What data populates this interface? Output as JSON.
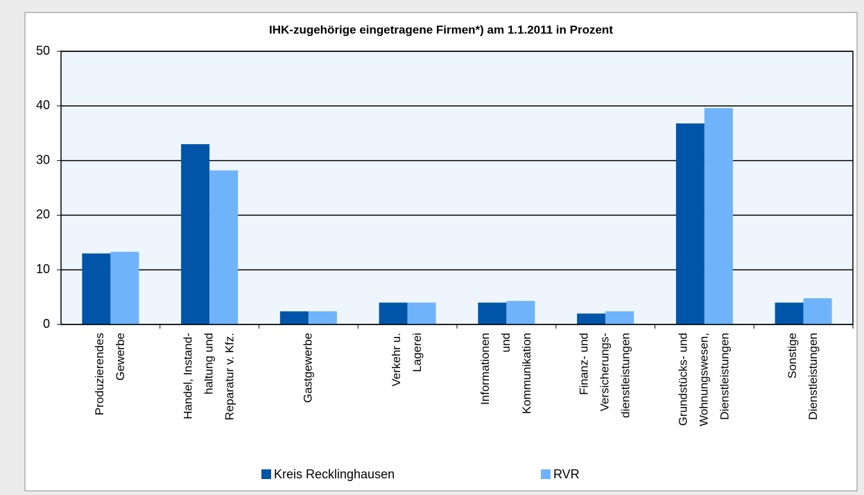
{
  "chart_data": {
    "type": "bar",
    "title": "IHK-zugehörige eingetragene Firmen*) am 1.1.2011 in Prozent",
    "categories": [
      [
        "Produzierendes",
        "Gewerbe"
      ],
      [
        "Handel, Instand-",
        "haltung und",
        "Reparatur v. Kfz."
      ],
      [
        "Gastgewerbe"
      ],
      [
        "Verkehr u.",
        "Lagerei"
      ],
      [
        "Informationen",
        "und",
        "Kommunikation"
      ],
      [
        "Finanz- und",
        "Versicherungs-",
        "dienstleistungen"
      ],
      [
        "Grundstücks- und",
        "Wohnungswesen,",
        "Dienstleistungen"
      ],
      [
        "Sonstige",
        "Dienstleistungen"
      ]
    ],
    "series": [
      {
        "name": "Kreis Recklinghausen",
        "color": "#0055a8",
        "values": [
          13,
          33,
          2.4,
          4,
          4,
          2,
          36.8,
          4
        ]
      },
      {
        "name": "RVR",
        "color": "#6fb3fb",
        "values": [
          13.3,
          28.2,
          2.4,
          4,
          4.3,
          2.4,
          39.6,
          4.8
        ]
      }
    ],
    "ylim": [
      0,
      50
    ],
    "yticks": [
      0,
      10,
      20,
      30,
      40,
      50
    ],
    "grid": true
  }
}
